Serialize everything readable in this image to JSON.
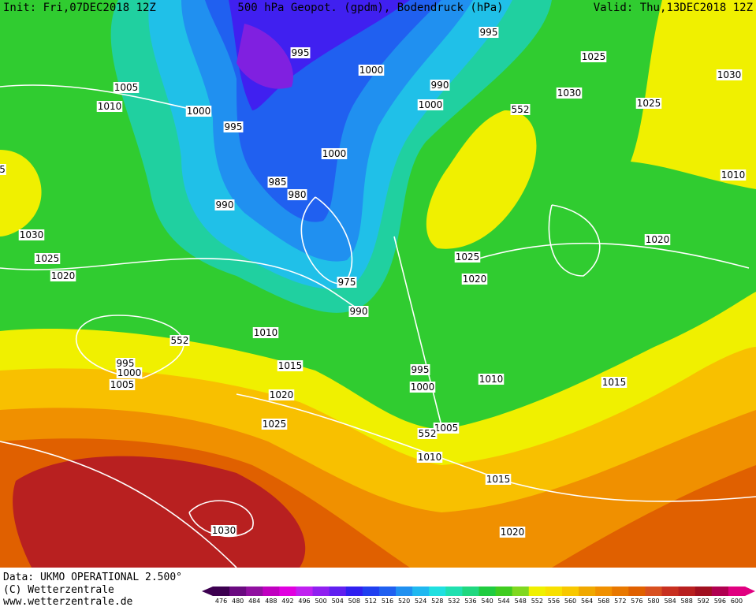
{
  "header": {
    "init": "Init: Fri,07DEC2018 12Z",
    "title": "500 hPa Geopot. (gpdm), Bodendruck (hPa)",
    "valid": "Valid: Thu,13DEC2018 12Z"
  },
  "isobar_labels": [
    995,
    995,
    1000,
    1025,
    1030,
    1005,
    990,
    1030,
    1010,
    1000,
    1000,
    552,
    1025,
    995,
    1000,
    1010,
    985,
    980,
    990,
    1030,
    1020,
    1025,
    1025,
    1020,
    1020,
    975,
    990,
    1010,
    552,
    995,
    1000,
    1005,
    1015,
    995,
    1000,
    1010,
    1015,
    1020,
    1025,
    1005,
    552,
    1010,
    1015,
    1030,
    1020,
    5
  ],
  "footer": {
    "data": "Data: UKMO OPERATIONAL 2.500°",
    "copyright": "(C) Wetterzentrale",
    "url": "www.wetterzentrale.de"
  },
  "colorbar": {
    "labels": [
      476,
      480,
      484,
      488,
      492,
      496,
      500,
      504,
      508,
      512,
      516,
      520,
      524,
      528,
      532,
      536,
      540,
      544,
      548,
      552,
      556,
      560,
      564,
      568,
      572,
      576,
      580,
      584,
      588,
      592,
      596,
      600
    ],
    "colors": [
      "#3c0050",
      "#6a0a80",
      "#9010a0",
      "#c000c0",
      "#e000e0",
      "#c020f0",
      "#9020f0",
      "#6020f0",
      "#3020f0",
      "#2040f0",
      "#2060f0",
      "#2090f0",
      "#20b8f0",
      "#20e0e0",
      "#20e0b0",
      "#20d880",
      "#20cc40",
      "#40cc20",
      "#80d820",
      "#f0f000",
      "#f8e000",
      "#f8c800",
      "#f0a800",
      "#f09000",
      "#e87800",
      "#e06000",
      "#d85020",
      "#c83020",
      "#b82020",
      "#a01020",
      "#b00050",
      "#e00080"
    ]
  }
}
